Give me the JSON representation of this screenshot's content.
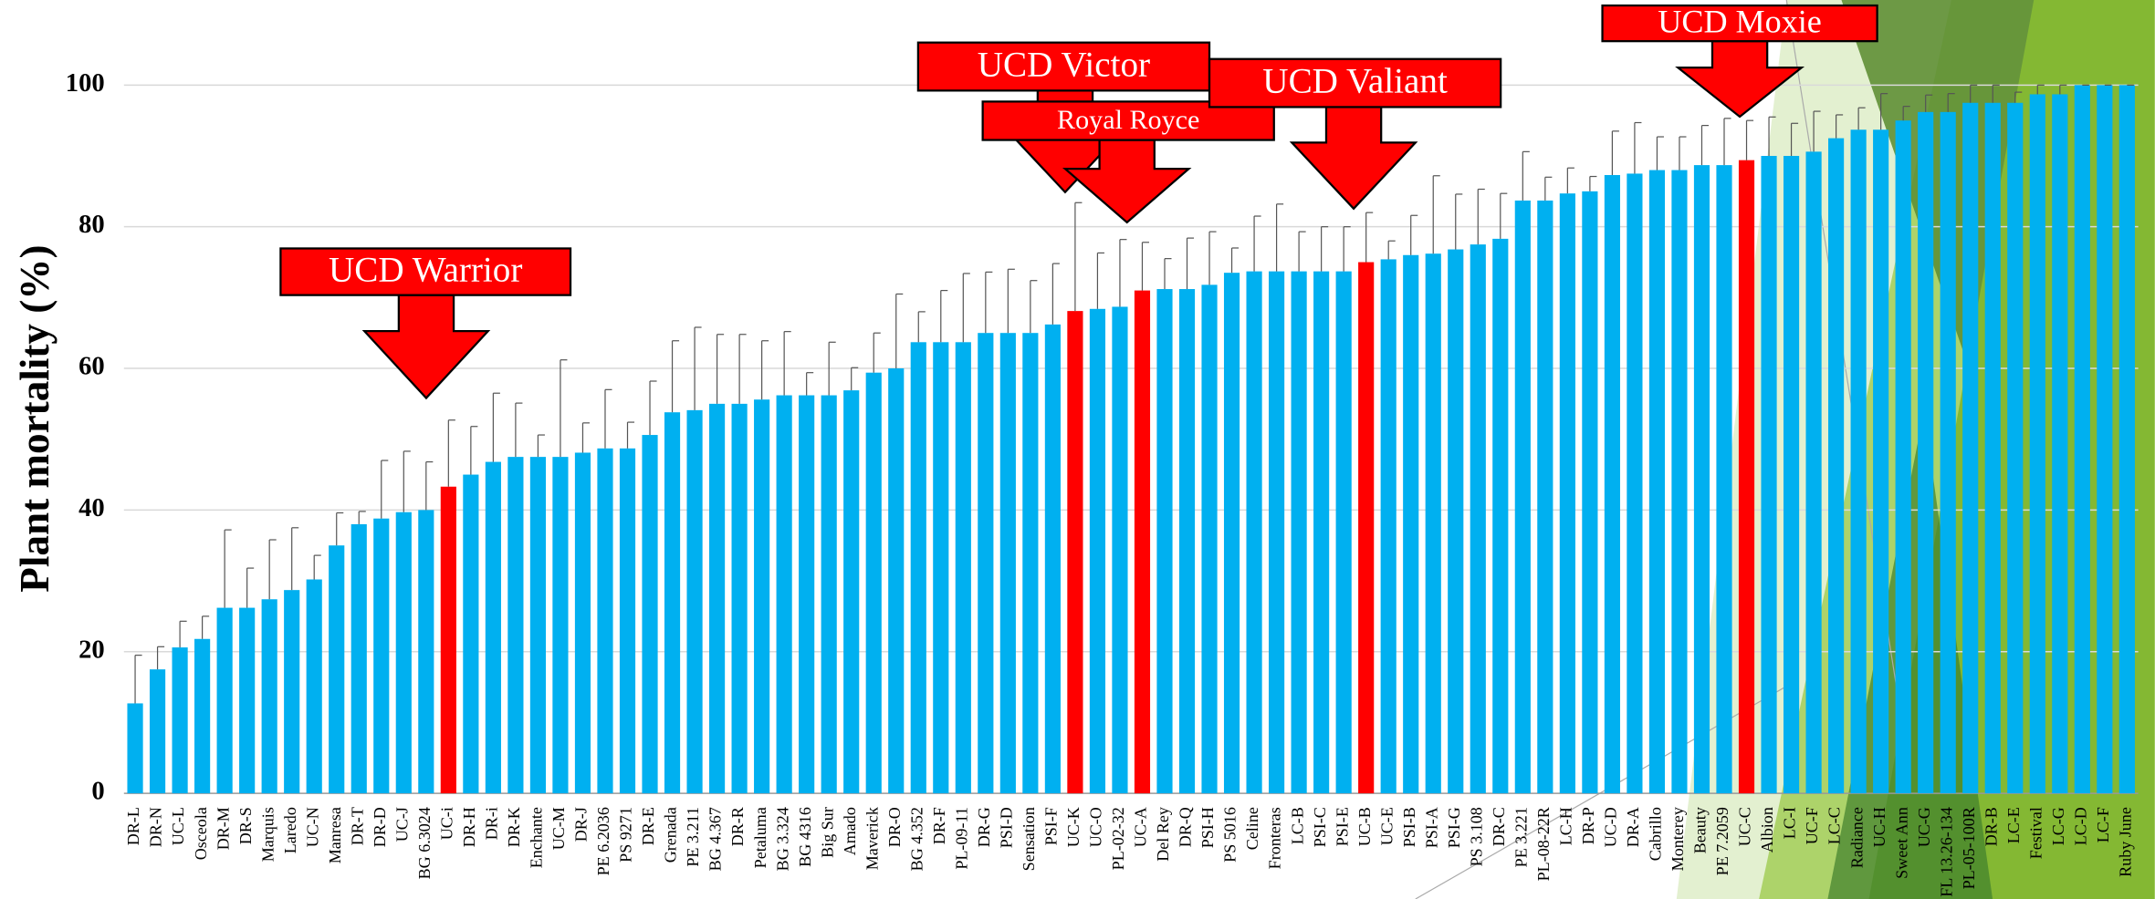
{
  "chart_data": {
    "type": "bar",
    "y_label": "Plant mortality (%)",
    "categories": [
      "DR-L",
      "DR-N",
      "UC-L",
      "Osceola",
      "DR-M",
      "DR-S",
      "Marquis",
      "Laredo",
      "UC-N",
      "Manresa",
      "DR-T",
      "DR-D",
      "UC-J",
      "BG 6.3024",
      "UC-i",
      "DR-H",
      "DR-i",
      "DR-K",
      "Enchante",
      "UC-M",
      "DR-J",
      "PE 6.2036",
      "PS 9271",
      "DR-E",
      "Grenada",
      "PE 3.211",
      "BG 4.367",
      "DR-R",
      "Petaluma",
      "BG 3.324",
      "BG 4316",
      "Big Sur",
      "Amado",
      "Maverick",
      "DR-O",
      "BG 4.352",
      "DR-F",
      "PL-09-11",
      "DR-G",
      "PSI-D",
      "Sensation",
      "PSI-F",
      "UC-K",
      "UC-O",
      "PL-02-32",
      "UC-A",
      "Del Rey",
      "DR-Q",
      "PSI-H",
      "PS 5016",
      "Celine",
      "Fronteras",
      "LC-B",
      "PSI-C",
      "PSI-E",
      "UC-B",
      "UC-E",
      "PSI-B",
      "PSI-A",
      "PSI-G",
      "PS 3.108",
      "DR-C",
      "PE 3.221",
      "PL-08-22R",
      "LC-H",
      "DR-P",
      "UC-D",
      "DR-A",
      "Cabrillo",
      "Monterey",
      "Beauty",
      "PE 7.2059",
      "UC-C",
      "Albion",
      "LC-I",
      "UC-F",
      "LC-C",
      "Radiance",
      "UC-H",
      "Sweet Ann",
      "UC-G",
      "FL 13.26-134",
      "PL-05-100R",
      "DR-B",
      "LC-E",
      "Festival",
      "LC-G",
      "LC-D",
      "LC-F",
      "Ruby June"
    ],
    "values": [
      12.7,
      17.5,
      20.6,
      21.8,
      26.2,
      26.2,
      27.4,
      28.7,
      30.2,
      35,
      38,
      38.8,
      39.7,
      40,
      43.3,
      45,
      46.8,
      47.5,
      47.5,
      47.5,
      48.1,
      48.7,
      48.7,
      50.6,
      53.8,
      54.1,
      55,
      55,
      55.6,
      56.2,
      56.2,
      56.2,
      56.9,
      59.4,
      60,
      63.7,
      63.7,
      63.7,
      65,
      65,
      65,
      66.2,
      68.1,
      68.4,
      68.7,
      71,
      71.2,
      71.2,
      71.8,
      73.5,
      73.7,
      73.7,
      73.7,
      73.7,
      73.7,
      75,
      75.4,
      76,
      76.2,
      76.8,
      77.5,
      78.3,
      83.7,
      83.7,
      84.7,
      85,
      87.3,
      87.5,
      88,
      88,
      88.7,
      88.7,
      89.4,
      90,
      90,
      90.6,
      92.5,
      93.7,
      93.7,
      95,
      96.2,
      96.2,
      97.5,
      97.5,
      97.5,
      98.7,
      98.7,
      100,
      100,
      100
    ],
    "errors": [
      6.8,
      3.2,
      3.7,
      3.2,
      11,
      5.6,
      8.4,
      8.8,
      3.4,
      4.6,
      1.8,
      8.2,
      8.6,
      6.8,
      9.4,
      6.8,
      9.7,
      7.6,
      3.1,
      13.7,
      4.2,
      8.3,
      3.7,
      7.6,
      10.1,
      11.7,
      9.8,
      9.8,
      8.3,
      9,
      3.2,
      7.5,
      3.2,
      5.6,
      10.5,
      4.3,
      7.3,
      9.7,
      8.6,
      9,
      7.4,
      8.6,
      15.3,
      7.9,
      9.5,
      6.8,
      4.3,
      7.2,
      7.5,
      3.5,
      7.8,
      9.5,
      5.6,
      6.3,
      6.3,
      7,
      2.6,
      5.6,
      11,
      7.8,
      7.8,
      6.4,
      6.9,
      3.3,
      3.6,
      2.1,
      6.2,
      7.2,
      4.7,
      4.7,
      5.6,
      6.6,
      5.6,
      5.5,
      4.6,
      5.7,
      3.3,
      3.1,
      5.1,
      2,
      2.4,
      2.6,
      2.5,
      2.5,
      1.5,
      1.3,
      1.3,
      0,
      0,
      0
    ],
    "color": "#00b0f0",
    "highlight_color": "#ff0000",
    "highlight_indices": [
      14,
      42,
      45,
      55,
      72
    ],
    "ylim": [
      0,
      100
    ],
    "yticks": [
      0,
      20,
      40,
      60,
      80,
      100
    ],
    "grid": true,
    "annotations": [
      {
        "text": "UCD Warrior"
      },
      {
        "text": "UCD Victor"
      },
      {
        "text": "Royal Royce"
      },
      {
        "text": "UCD Valiant"
      },
      {
        "text": "UCD Moxie"
      }
    ]
  }
}
